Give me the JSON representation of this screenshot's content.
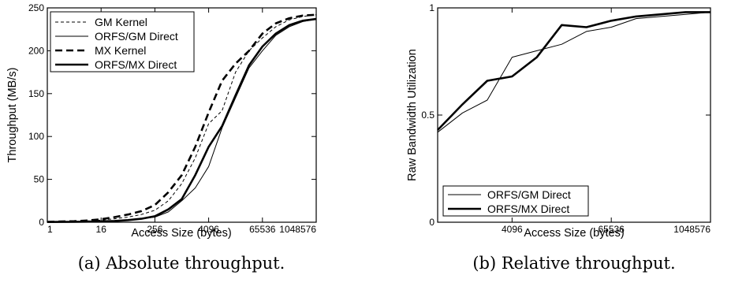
{
  "chart_data": [
    {
      "type": "line",
      "caption": "(a) Absolute throughput.",
      "xlabel": "Access Size (bytes)",
      "ylabel": "Throughput (MB/s)",
      "x_scale": "log2",
      "xlim": [
        1,
        1048576
      ],
      "ylim": [
        0,
        250
      ],
      "xticks": [
        1,
        16,
        256,
        4096,
        65536,
        1048576
      ],
      "xtick_labels": [
        "1",
        "16",
        "256",
        "4096",
        "65536",
        "1048576"
      ],
      "yticks": [
        0,
        50,
        100,
        150,
        200,
        250
      ],
      "ytick_labels": [
        "0",
        "50",
        "100",
        "150",
        "200",
        "250"
      ],
      "grid": false,
      "legend_position": "top-left",
      "x": [
        1,
        2,
        4,
        8,
        16,
        32,
        64,
        128,
        256,
        512,
        1024,
        2048,
        4096,
        8192,
        16384,
        32768,
        65536,
        131072,
        262144,
        524288,
        1048576
      ],
      "series": [
        {
          "name": "GM Kernel",
          "style": "thin-dashed",
          "values": [
            0.5,
            0.7,
            1,
            1.5,
            2.5,
            4,
            6,
            9,
            14,
            25,
            45,
            75,
            115,
            130,
            175,
            200,
            215,
            228,
            236,
            240,
            242
          ]
        },
        {
          "name": "ORFS/GM Direct",
          "style": "thin-solid",
          "values": [
            0.3,
            0.4,
            0.5,
            0.7,
            1,
            1.5,
            2.5,
            4,
            6,
            12,
            25,
            40,
            65,
            110,
            145,
            180,
            200,
            218,
            228,
            234,
            237
          ]
        },
        {
          "name": "MX Kernel",
          "style": "thick-dashed",
          "values": [
            0.5,
            0.8,
            1.2,
            2,
            3.5,
            6,
            9,
            13,
            20,
            35,
            55,
            88,
            128,
            165,
            185,
            200,
            220,
            232,
            238,
            241,
            242
          ]
        },
        {
          "name": "ORFS/MX Direct",
          "style": "thick-solid",
          "values": [
            0.3,
            0.4,
            0.5,
            0.7,
            1,
            1.5,
            2.5,
            4,
            7,
            15,
            27,
            55,
            88,
            112,
            148,
            183,
            205,
            220,
            230,
            235,
            237
          ]
        }
      ]
    },
    {
      "type": "line",
      "caption": "(b) Relative throughput.",
      "xlabel": "Access Size (bytes)",
      "ylabel": "Raw Bandwidth Utilization",
      "x_scale": "log2",
      "xlim": [
        512,
        1048576
      ],
      "ylim": [
        0,
        1
      ],
      "xticks": [
        4096,
        65536,
        1048576
      ],
      "xtick_labels": [
        "4096",
        "65536",
        "1048576"
      ],
      "yticks": [
        0,
        0.5,
        1
      ],
      "ytick_labels": [
        "0",
        "0.5",
        "1"
      ],
      "grid": false,
      "legend_position": "bottom-left",
      "x": [
        512,
        1024,
        2048,
        4096,
        8192,
        16384,
        32768,
        65536,
        131072,
        262144,
        524288,
        1048576
      ],
      "series": [
        {
          "name": "ORFS/GM Direct",
          "style": "thin-solid",
          "values": [
            0.42,
            0.51,
            0.57,
            0.77,
            0.8,
            0.83,
            0.89,
            0.91,
            0.95,
            0.96,
            0.97,
            0.98
          ]
        },
        {
          "name": "ORFS/MX Direct",
          "style": "thick-solid",
          "values": [
            0.43,
            0.55,
            0.66,
            0.68,
            0.77,
            0.92,
            0.91,
            0.94,
            0.96,
            0.97,
            0.98,
            0.98
          ]
        }
      ]
    }
  ]
}
